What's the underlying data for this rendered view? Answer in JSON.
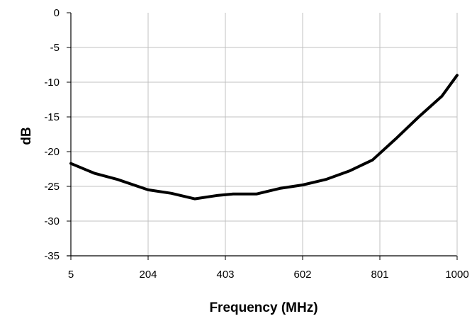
{
  "chart_data": {
    "type": "line",
    "title": "",
    "xlabel": "Frequency (MHz)",
    "ylabel": "dB",
    "xlim": [
      5,
      1000
    ],
    "ylim": [
      -35,
      0
    ],
    "x_ticks": [
      5,
      204,
      403,
      602,
      801,
      1000
    ],
    "y_ticks": [
      0,
      -5,
      -10,
      -15,
      -20,
      -25,
      -30,
      -35
    ],
    "grid": true,
    "legend": "none",
    "series": [
      {
        "color": "#000000",
        "x": [
          5,
          65,
          125,
          204,
          264,
          324,
          384,
          423,
          483,
          543,
          602,
          662,
          722,
          782,
          841,
          901,
          961,
          1000
        ],
        "y": [
          -21.7,
          -23.1,
          -24.0,
          -25.5,
          -26.0,
          -26.8,
          -26.3,
          -26.1,
          -26.1,
          -25.3,
          -24.8,
          -24.0,
          -22.8,
          -21.2,
          -18.2,
          -15.0,
          -12.0,
          -9.0
        ]
      }
    ]
  }
}
